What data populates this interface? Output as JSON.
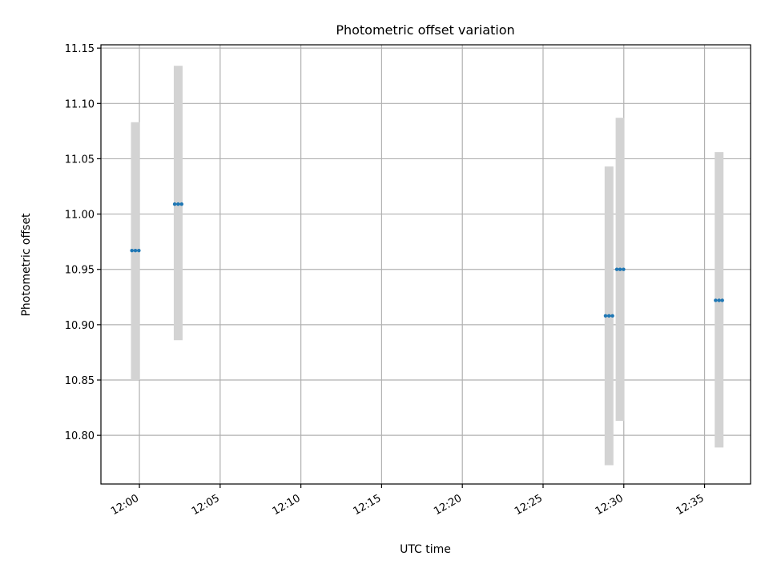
{
  "chart_data": {
    "type": "scatter",
    "title": "Photometric offset variation",
    "xlabel": "UTC time",
    "ylabel": "Photometric offset",
    "x_unit": "time (HH:MM UTC)",
    "xlim": [
      "11:57:37",
      "12:37:51"
    ],
    "ylim": [
      10.756,
      11.153
    ],
    "x_ticks": [
      "12:00",
      "12:05",
      "12:10",
      "12:15",
      "12:20",
      "12:25",
      "12:30",
      "12:35"
    ],
    "y_ticks": [
      "10.80",
      "10.85",
      "10.90",
      "10.95",
      "11.00",
      "11.05",
      "11.10",
      "11.15"
    ],
    "y_tick_values": [
      10.8,
      10.85,
      10.9,
      10.95,
      11.0,
      11.05,
      11.1,
      11.15
    ],
    "grid": true,
    "x_tick_rotation": "30 degrees",
    "points": [
      {
        "time_start": "11:59:32",
        "time_end": "11:59:58",
        "time": "11:59:45",
        "y": 10.967,
        "y_low": 10.85,
        "y_high": 11.083
      },
      {
        "time_start": "12:02:11",
        "time_end": "12:02:37",
        "time": "12:02:24",
        "y": 11.009,
        "y_low": 10.886,
        "y_high": 11.134
      },
      {
        "time_start": "12:28:52",
        "time_end": "12:29:18",
        "time": "12:29:05",
        "y": 10.908,
        "y_low": 10.773,
        "y_high": 11.043
      },
      {
        "time_start": "12:29:34",
        "time_end": "12:29:59",
        "time": "12:29:46",
        "y": 10.95,
        "y_low": 10.813,
        "y_high": 11.087
      },
      {
        "time_start": "12:35:41",
        "time_end": "12:36:06",
        "time": "12:35:54",
        "y": 10.922,
        "y_low": 10.789,
        "y_high": 11.056
      }
    ],
    "colors": {
      "point": "#1f77b4",
      "errorbar": "#d3d3d3",
      "grid": "#b0b0b0",
      "axes": "#000000"
    }
  }
}
